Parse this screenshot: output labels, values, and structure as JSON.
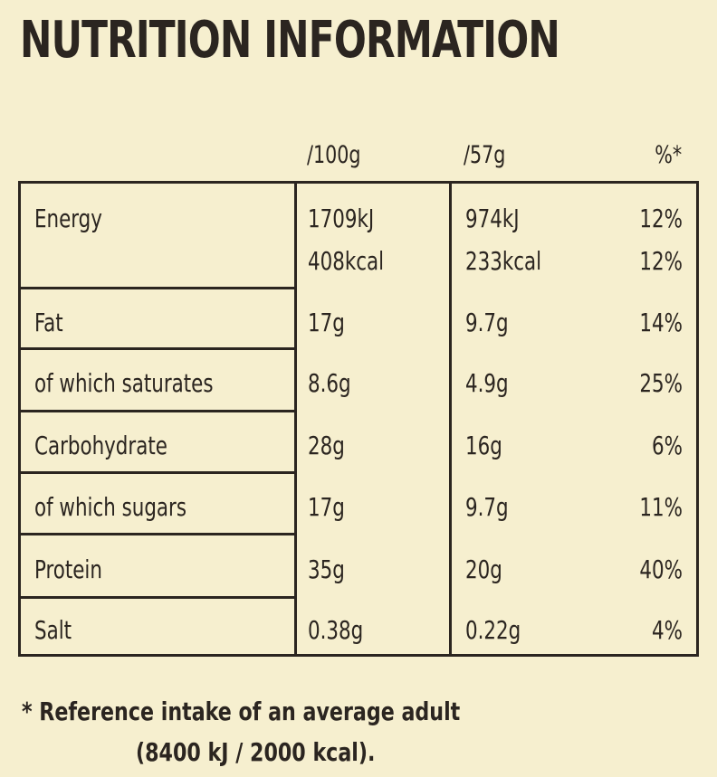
{
  "title": "NUTRITION INFORMATION",
  "headers": {
    "per100g": "/100g",
    "per57g": "/57g",
    "percent": "%*"
  },
  "rows": [
    {
      "label": "Energy",
      "per100g": "1709kJ",
      "per57g": "974kJ",
      "percent": "12%"
    },
    {
      "label": "",
      "per100g": "408kcal",
      "per57g": "233kcal",
      "percent": "12%"
    },
    {
      "label": "Fat",
      "per100g": "17g",
      "per57g": "9.7g",
      "percent": "14%"
    },
    {
      "label": "of which saturates",
      "per100g": "8.6g",
      "per57g": "4.9g",
      "percent": "25%"
    },
    {
      "label": "Carbohydrate",
      "per100g": "28g",
      "per57g": "16g",
      "percent": "6%"
    },
    {
      "label": "of which sugars",
      "per100g": "17g",
      "per57g": "9.7g",
      "percent": "11%"
    },
    {
      "label": "Protein",
      "per100g": "35g",
      "per57g": "20g",
      "percent": "40%"
    },
    {
      "label": "Salt",
      "per100g": "0.38g",
      "per57g": "0.22g",
      "percent": "4%"
    }
  ],
  "footnote": {
    "line1": "* Reference intake of an average adult",
    "line2": "(8400 kJ / 2000 kcal)."
  }
}
